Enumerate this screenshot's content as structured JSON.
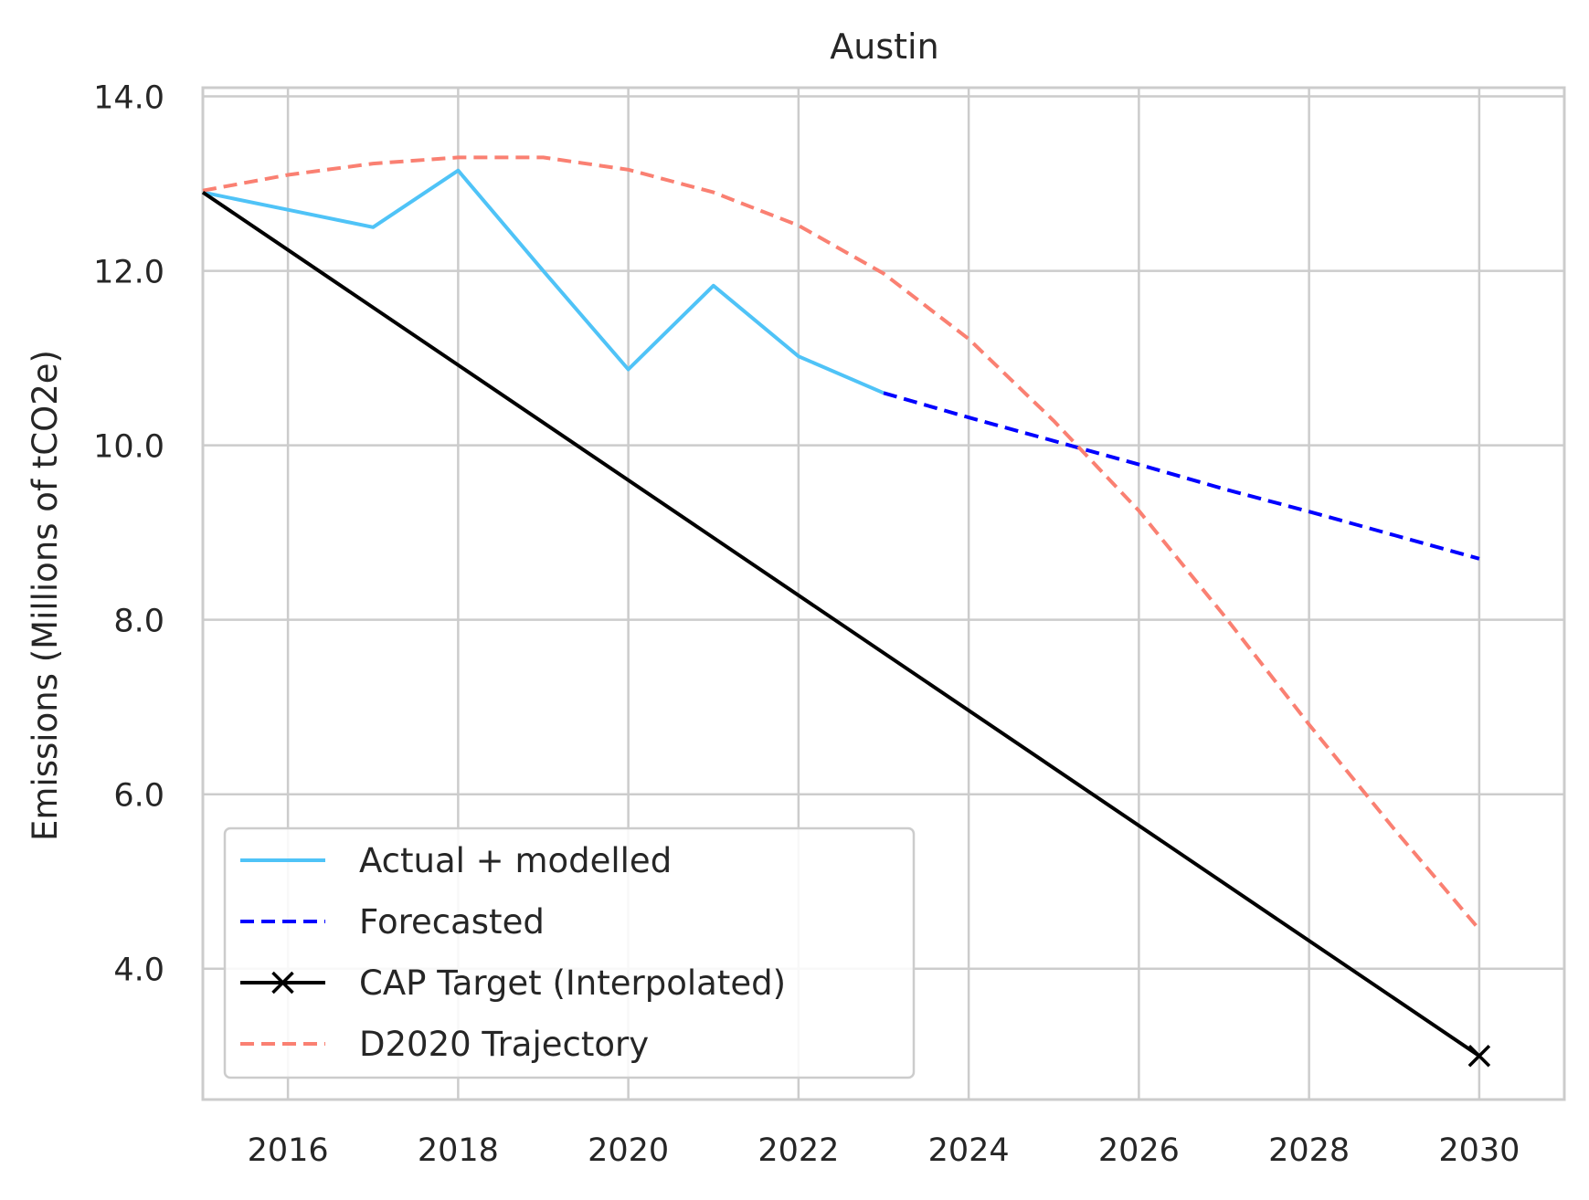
{
  "chart_data": {
    "type": "line",
    "title": "Austin",
    "xlabel": "",
    "ylabel": "Emissions (Millions of tCO2e)",
    "xlim": [
      2015,
      2031
    ],
    "ylim": [
      2.5,
      14.1
    ],
    "xticks": [
      2016,
      2018,
      2020,
      2022,
      2024,
      2026,
      2028,
      2030
    ],
    "xtick_labels": [
      "2016",
      "2018",
      "2020",
      "2022",
      "2024",
      "2026",
      "2028",
      "2030"
    ],
    "yticks": [
      4,
      6,
      8,
      10,
      12,
      14
    ],
    "ytick_labels": [
      "4.0",
      "6.0",
      "8.0",
      "10.0",
      "12.0",
      "14.0"
    ],
    "grid": true,
    "legend_position": "lower-left",
    "series": [
      {
        "name": "Actual + modelled",
        "color": "#4fc3f7",
        "style": "solid",
        "marker": "none",
        "x": [
          2015,
          2016,
          2017,
          2018,
          2019,
          2020,
          2021,
          2022,
          2023
        ],
        "y": [
          12.9,
          12.7,
          12.5,
          13.15,
          12.0,
          10.87,
          11.83,
          11.02,
          10.6
        ]
      },
      {
        "name": "Forecasted",
        "color": "#0000ff",
        "style": "dashed",
        "marker": "none",
        "x": [
          2023,
          2024,
          2025,
          2026,
          2027,
          2028,
          2029,
          2030
        ],
        "y": [
          10.6,
          10.32,
          10.05,
          9.78,
          9.5,
          9.24,
          8.97,
          8.7
        ]
      },
      {
        "name": "CAP Target (Interpolated)",
        "color": "#000000",
        "style": "solid",
        "marker": "x",
        "marker_points": [
          [
            2030,
            3.0
          ]
        ],
        "x": [
          2015,
          2030
        ],
        "y": [
          12.9,
          3.0
        ]
      },
      {
        "name": "D2020 Trajectory",
        "color": "#fa8072",
        "style": "dashed",
        "marker": "none",
        "x": [
          2015,
          2016,
          2017,
          2018,
          2019,
          2020,
          2021,
          2022,
          2023,
          2024,
          2025,
          2026,
          2027,
          2028,
          2029,
          2030
        ],
        "y": [
          12.92,
          13.1,
          13.23,
          13.3,
          13.3,
          13.16,
          12.9,
          12.52,
          11.97,
          11.22,
          10.28,
          9.25,
          8.05,
          6.8,
          5.6,
          4.45
        ]
      }
    ]
  }
}
